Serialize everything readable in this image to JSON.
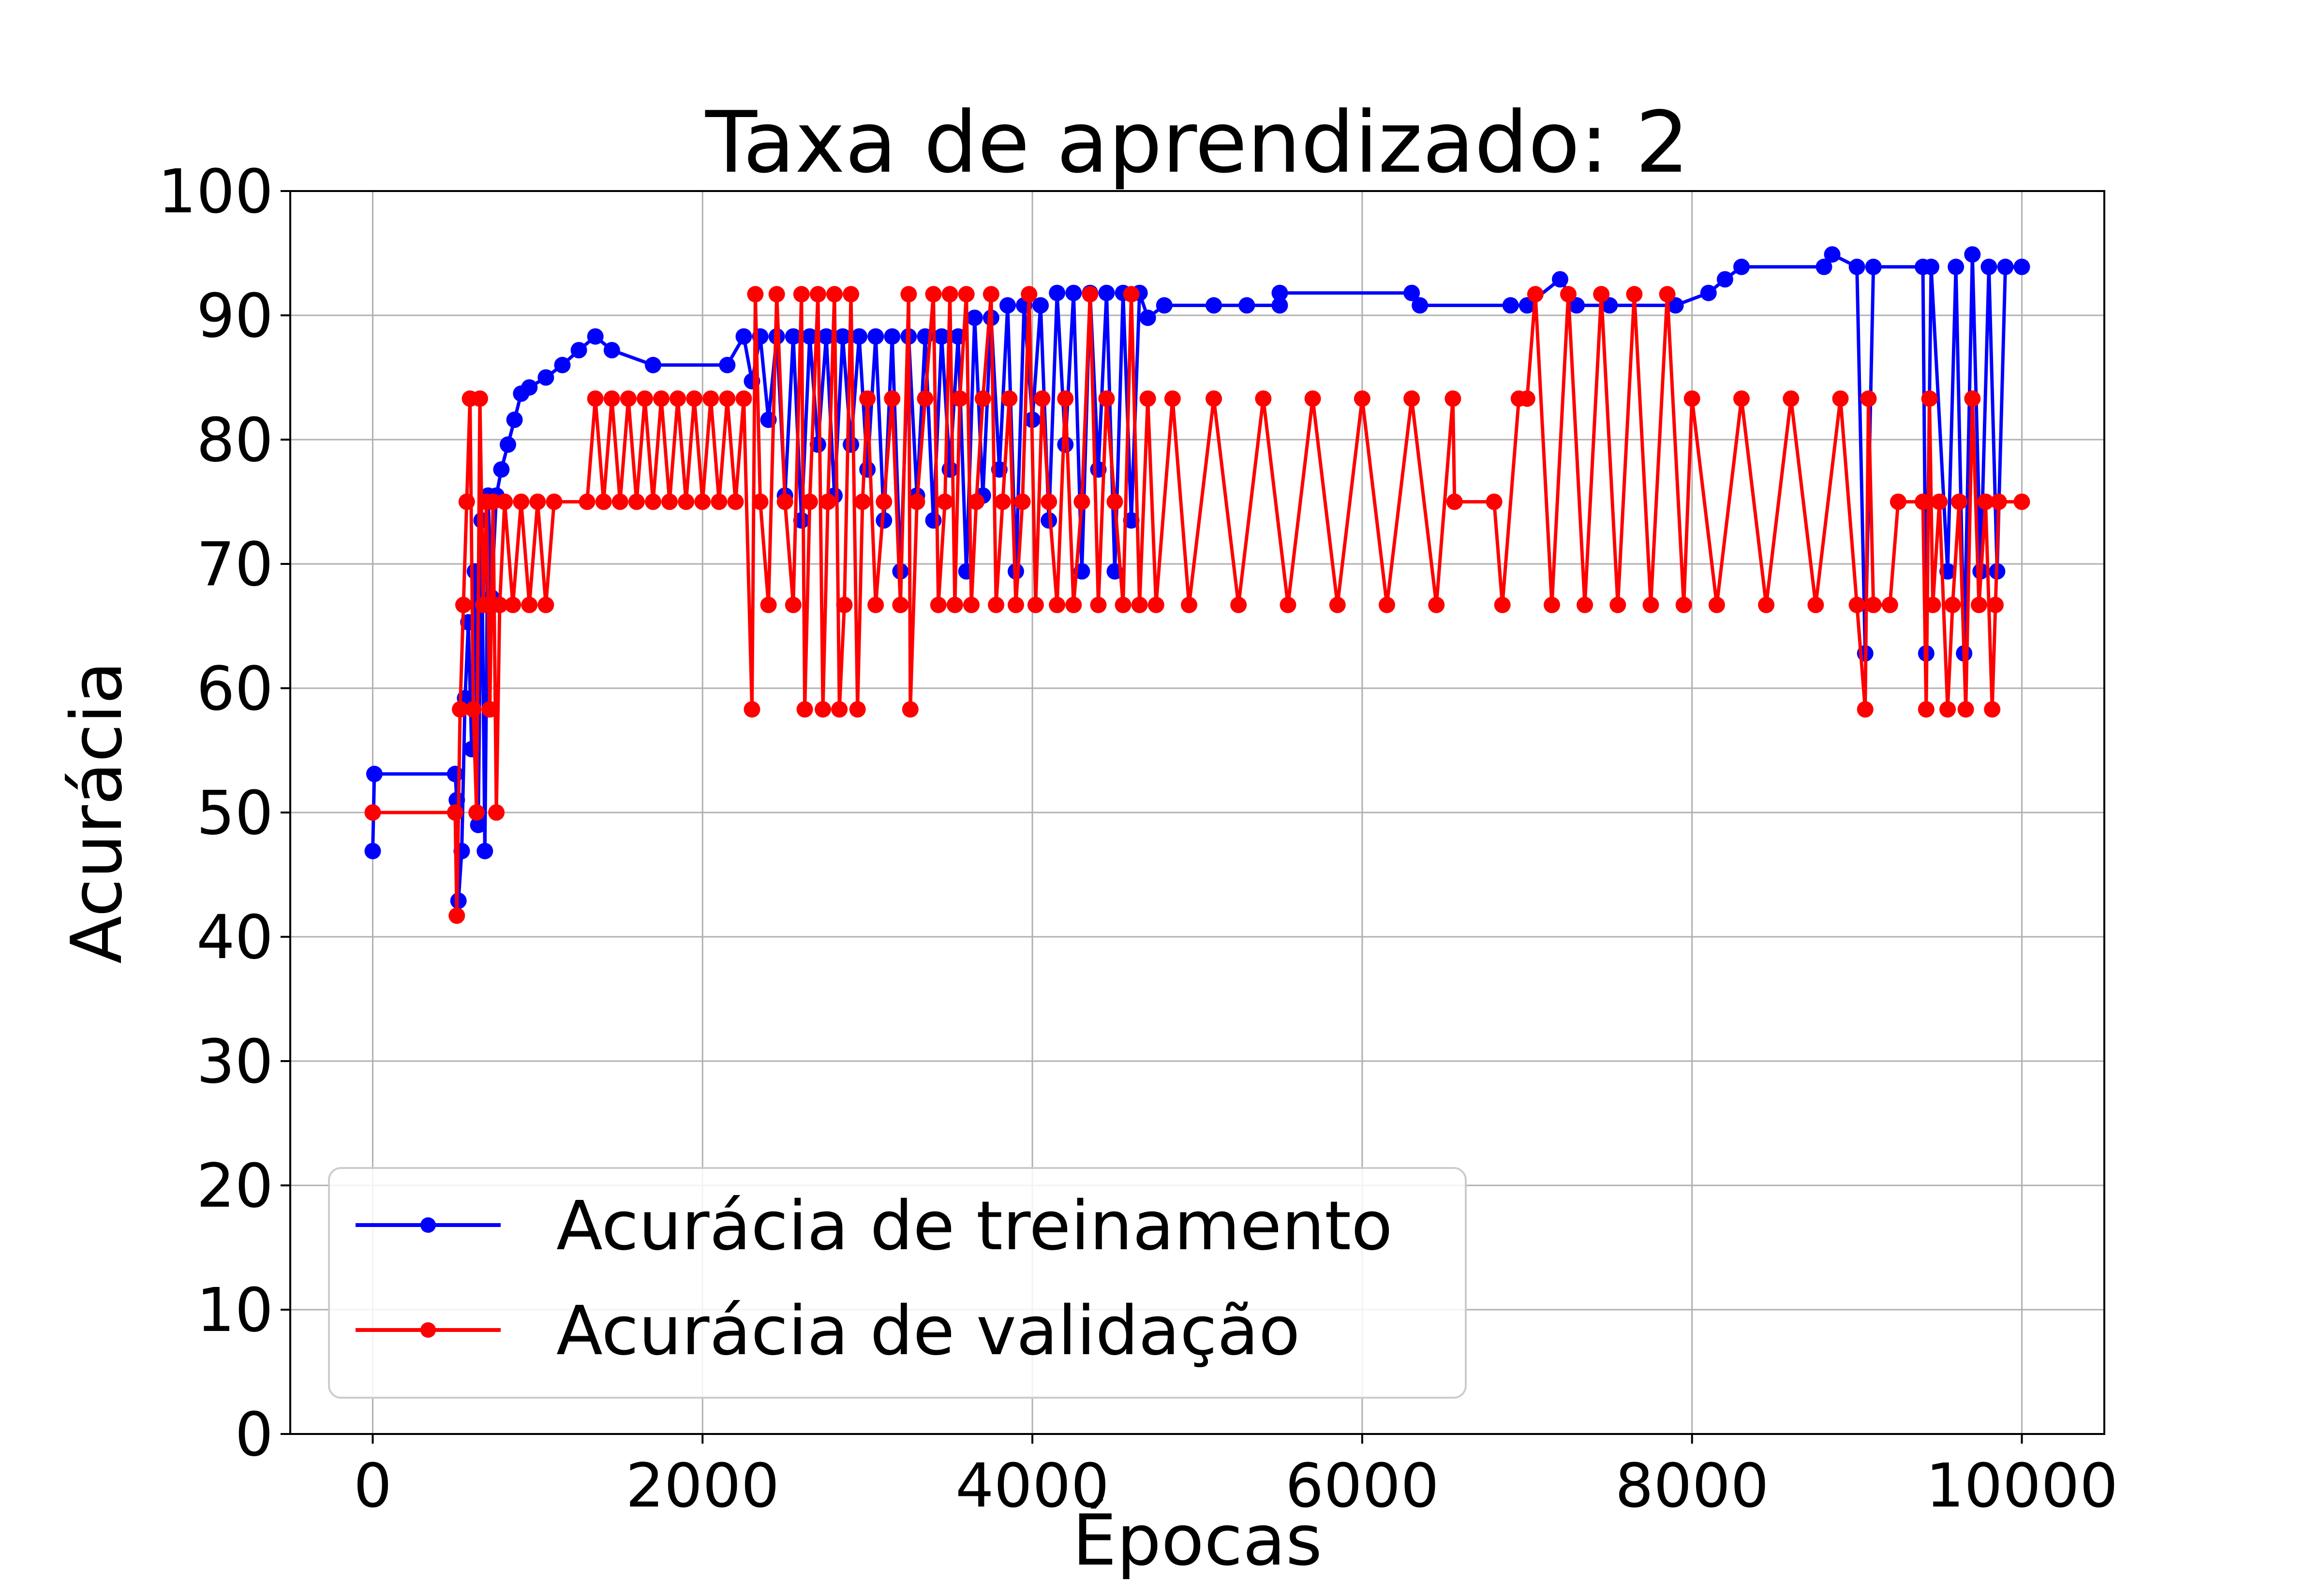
{
  "chart_data": {
    "type": "line",
    "title": "Taxa de aprendizado: 2",
    "xlabel": "Épocas",
    "ylabel": "Acurácia",
    "xlim": [
      -500,
      10500
    ],
    "ylim": [
      0,
      100
    ],
    "xticks": [
      0,
      2000,
      4000,
      6000,
      8000,
      10000
    ],
    "yticks": [
      0,
      10,
      20,
      30,
      40,
      50,
      60,
      70,
      80,
      90,
      100
    ],
    "grid": true,
    "legend_position": "lower-left",
    "series": [
      {
        "name": "Acurácia de treinamento",
        "color": "#0000ff",
        "marker": "circle",
        "points": [
          [
            0,
            46.9
          ],
          [
            10,
            53.1
          ],
          [
            500,
            53.1
          ],
          [
            510,
            51.0
          ],
          [
            520,
            42.9
          ],
          [
            540,
            46.9
          ],
          [
            560,
            59.2
          ],
          [
            580,
            65.3
          ],
          [
            600,
            55.1
          ],
          [
            620,
            69.4
          ],
          [
            640,
            49.0
          ],
          [
            660,
            73.5
          ],
          [
            680,
            46.9
          ],
          [
            700,
            75.5
          ],
          [
            720,
            67.3
          ],
          [
            750,
            75.5
          ],
          [
            780,
            77.6
          ],
          [
            820,
            79.6
          ],
          [
            860,
            81.6
          ],
          [
            900,
            83.7
          ],
          [
            950,
            84.2
          ],
          [
            1050,
            85.0
          ],
          [
            1150,
            86.0
          ],
          [
            1250,
            87.2
          ],
          [
            1350,
            88.3
          ],
          [
            1450,
            87.2
          ],
          [
            1700,
            86.0
          ],
          [
            2150,
            86.0
          ],
          [
            2250,
            88.3
          ],
          [
            2300,
            84.7
          ],
          [
            2350,
            88.3
          ],
          [
            2400,
            81.6
          ],
          [
            2450,
            88.3
          ],
          [
            2500,
            75.5
          ],
          [
            2550,
            88.3
          ],
          [
            2600,
            73.5
          ],
          [
            2650,
            88.3
          ],
          [
            2700,
            79.6
          ],
          [
            2750,
            88.3
          ],
          [
            2800,
            75.5
          ],
          [
            2850,
            88.3
          ],
          [
            2900,
            79.6
          ],
          [
            2950,
            88.3
          ],
          [
            3000,
            77.6
          ],
          [
            3050,
            88.3
          ],
          [
            3100,
            73.5
          ],
          [
            3150,
            88.3
          ],
          [
            3200,
            69.4
          ],
          [
            3250,
            88.3
          ],
          [
            3300,
            75.5
          ],
          [
            3350,
            88.3
          ],
          [
            3400,
            73.5
          ],
          [
            3450,
            88.3
          ],
          [
            3500,
            77.6
          ],
          [
            3550,
            88.3
          ],
          [
            3600,
            69.4
          ],
          [
            3650,
            89.8
          ],
          [
            3700,
            75.5
          ],
          [
            3750,
            89.8
          ],
          [
            3800,
            77.6
          ],
          [
            3850,
            90.8
          ],
          [
            3900,
            69.4
          ],
          [
            3950,
            90.8
          ],
          [
            4000,
            81.6
          ],
          [
            4050,
            90.8
          ],
          [
            4100,
            73.5
          ],
          [
            4150,
            91.8
          ],
          [
            4200,
            79.6
          ],
          [
            4250,
            91.8
          ],
          [
            4300,
            69.4
          ],
          [
            4350,
            91.8
          ],
          [
            4400,
            77.6
          ],
          [
            4450,
            91.8
          ],
          [
            4500,
            69.4
          ],
          [
            4550,
            91.8
          ],
          [
            4600,
            73.5
          ],
          [
            4650,
            91.8
          ],
          [
            4700,
            89.8
          ],
          [
            4800,
            90.8
          ],
          [
            5100,
            90.8
          ],
          [
            5300,
            90.8
          ],
          [
            5500,
            90.8
          ],
          [
            5500,
            91.8
          ],
          [
            6300,
            91.8
          ],
          [
            6350,
            90.8
          ],
          [
            6900,
            90.8
          ],
          [
            7000,
            90.8
          ],
          [
            7200,
            92.9
          ],
          [
            7300,
            90.8
          ],
          [
            7500,
            90.8
          ],
          [
            7900,
            90.8
          ],
          [
            8100,
            91.8
          ],
          [
            8200,
            92.9
          ],
          [
            8300,
            93.9
          ],
          [
            8800,
            93.9
          ],
          [
            8850,
            94.9
          ],
          [
            9000,
            93.9
          ],
          [
            9050,
            62.8
          ],
          [
            9100,
            93.9
          ],
          [
            9400,
            93.9
          ],
          [
            9420,
            62.8
          ],
          [
            9450,
            93.9
          ],
          [
            9550,
            69.4
          ],
          [
            9600,
            93.9
          ],
          [
            9650,
            62.8
          ],
          [
            9700,
            94.9
          ],
          [
            9750,
            69.4
          ],
          [
            9800,
            93.9
          ],
          [
            9850,
            69.4
          ],
          [
            9900,
            93.9
          ],
          [
            10000,
            93.9
          ]
        ]
      },
      {
        "name": "Acurácia de validação",
        "color": "#ff0000",
        "marker": "circle",
        "points": [
          [
            0,
            50.0
          ],
          [
            500,
            50.0
          ],
          [
            510,
            41.7
          ],
          [
            530,
            58.3
          ],
          [
            550,
            66.7
          ],
          [
            570,
            75.0
          ],
          [
            590,
            83.3
          ],
          [
            610,
            58.3
          ],
          [
            630,
            50.0
          ],
          [
            650,
            83.3
          ],
          [
            670,
            66.7
          ],
          [
            690,
            75.0
          ],
          [
            710,
            58.3
          ],
          [
            730,
            75.0
          ],
          [
            750,
            50.0
          ],
          [
            770,
            66.7
          ],
          [
            800,
            75.0
          ],
          [
            850,
            66.7
          ],
          [
            900,
            75.0
          ],
          [
            950,
            66.7
          ],
          [
            1000,
            75.0
          ],
          [
            1050,
            66.7
          ],
          [
            1100,
            75.0
          ],
          [
            1300,
            75.0
          ],
          [
            1350,
            83.3
          ],
          [
            1400,
            75.0
          ],
          [
            1450,
            83.3
          ],
          [
            1500,
            75.0
          ],
          [
            1550,
            83.3
          ],
          [
            1600,
            75.0
          ],
          [
            1650,
            83.3
          ],
          [
            1700,
            75.0
          ],
          [
            1750,
            83.3
          ],
          [
            1800,
            75.0
          ],
          [
            1850,
            83.3
          ],
          [
            1900,
            75.0
          ],
          [
            1950,
            83.3
          ],
          [
            2000,
            75.0
          ],
          [
            2050,
            83.3
          ],
          [
            2100,
            75.0
          ],
          [
            2150,
            83.3
          ],
          [
            2200,
            75.0
          ],
          [
            2250,
            83.3
          ],
          [
            2300,
            58.3
          ],
          [
            2320,
            91.7
          ],
          [
            2350,
            75.0
          ],
          [
            2400,
            66.7
          ],
          [
            2450,
            91.7
          ],
          [
            2500,
            75.0
          ],
          [
            2550,
            66.7
          ],
          [
            2600,
            91.7
          ],
          [
            2620,
            58.3
          ],
          [
            2650,
            75.0
          ],
          [
            2700,
            91.7
          ],
          [
            2730,
            58.3
          ],
          [
            2760,
            75.0
          ],
          [
            2800,
            91.7
          ],
          [
            2830,
            58.3
          ],
          [
            2860,
            66.7
          ],
          [
            2900,
            91.7
          ],
          [
            2940,
            58.3
          ],
          [
            2970,
            75.0
          ],
          [
            3000,
            83.3
          ],
          [
            3050,
            66.7
          ],
          [
            3100,
            75.0
          ],
          [
            3150,
            83.3
          ],
          [
            3200,
            66.7
          ],
          [
            3250,
            91.7
          ],
          [
            3260,
            58.3
          ],
          [
            3300,
            75.0
          ],
          [
            3350,
            83.3
          ],
          [
            3400,
            91.7
          ],
          [
            3430,
            66.7
          ],
          [
            3470,
            75.0
          ],
          [
            3500,
            91.7
          ],
          [
            3530,
            66.7
          ],
          [
            3560,
            83.3
          ],
          [
            3600,
            91.7
          ],
          [
            3630,
            66.7
          ],
          [
            3660,
            75.0
          ],
          [
            3700,
            83.3
          ],
          [
            3750,
            91.7
          ],
          [
            3780,
            66.7
          ],
          [
            3820,
            75.0
          ],
          [
            3860,
            83.3
          ],
          [
            3900,
            66.7
          ],
          [
            3940,
            75.0
          ],
          [
            3980,
            91.7
          ],
          [
            4020,
            66.7
          ],
          [
            4060,
            83.3
          ],
          [
            4100,
            75.0
          ],
          [
            4150,
            66.7
          ],
          [
            4200,
            83.3
          ],
          [
            4250,
            66.7
          ],
          [
            4300,
            75.0
          ],
          [
            4350,
            91.7
          ],
          [
            4400,
            66.7
          ],
          [
            4450,
            83.3
          ],
          [
            4500,
            75.0
          ],
          [
            4550,
            66.7
          ],
          [
            4600,
            91.7
          ],
          [
            4650,
            66.7
          ],
          [
            4700,
            83.3
          ],
          [
            4750,
            66.7
          ],
          [
            4850,
            83.3
          ],
          [
            4950,
            66.7
          ],
          [
            5100,
            83.3
          ],
          [
            5250,
            66.7
          ],
          [
            5400,
            83.3
          ],
          [
            5550,
            66.7
          ],
          [
            5700,
            83.3
          ],
          [
            5850,
            66.7
          ],
          [
            6000,
            83.3
          ],
          [
            6150,
            66.7
          ],
          [
            6300,
            83.3
          ],
          [
            6450,
            66.7
          ],
          [
            6550,
            83.3
          ],
          [
            6560,
            75.0
          ],
          [
            6800,
            75.0
          ],
          [
            6850,
            66.7
          ],
          [
            6950,
            83.3
          ],
          [
            7000,
            83.3
          ],
          [
            7050,
            91.7
          ],
          [
            7150,
            66.7
          ],
          [
            7250,
            91.7
          ],
          [
            7350,
            66.7
          ],
          [
            7450,
            91.7
          ],
          [
            7550,
            66.7
          ],
          [
            7650,
            91.7
          ],
          [
            7750,
            66.7
          ],
          [
            7850,
            91.7
          ],
          [
            7950,
            66.7
          ],
          [
            8000,
            83.3
          ],
          [
            8150,
            66.7
          ],
          [
            8300,
            83.3
          ],
          [
            8450,
            66.7
          ],
          [
            8600,
            83.3
          ],
          [
            8750,
            66.7
          ],
          [
            8900,
            83.3
          ],
          [
            9000,
            66.7
          ],
          [
            9050,
            58.3
          ],
          [
            9070,
            83.3
          ],
          [
            9100,
            66.7
          ],
          [
            9200,
            66.7
          ],
          [
            9250,
            75.0
          ],
          [
            9400,
            75.0
          ],
          [
            9420,
            58.3
          ],
          [
            9440,
            83.3
          ],
          [
            9460,
            66.7
          ],
          [
            9500,
            75.0
          ],
          [
            9550,
            58.3
          ],
          [
            9580,
            66.7
          ],
          [
            9620,
            75.0
          ],
          [
            9660,
            58.3
          ],
          [
            9700,
            83.3
          ],
          [
            9740,
            66.7
          ],
          [
            9780,
            75.0
          ],
          [
            9820,
            58.3
          ],
          [
            9840,
            66.7
          ],
          [
            9860,
            75.0
          ],
          [
            10000,
            75.0
          ]
        ]
      }
    ]
  }
}
